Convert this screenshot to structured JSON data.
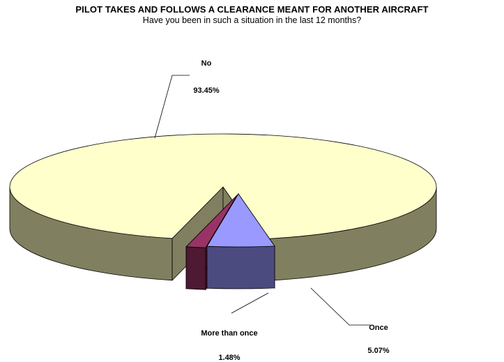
{
  "chart_data": {
    "type": "pie",
    "style": "3d-exploded",
    "title": "PILOT TAKES AND FOLLOWS A CLEARANCE MEANT FOR ANOTHER AIRCRAFT",
    "subtitle": "Have you been in such a situation in the last 12 months?",
    "slices": [
      {
        "label": "No",
        "value": 93.45,
        "value_label": "93.45%",
        "color": "#FFFFCC",
        "side_color": "#808060"
      },
      {
        "label": "Once",
        "value": 5.07,
        "value_label": "5.07%",
        "color": "#9999FF",
        "side_color": "#4B4B80"
      },
      {
        "label": "More than once",
        "value": 1.48,
        "value_label": "1.48%",
        "color": "#993366",
        "side_color": "#4D1933"
      }
    ],
    "legend": "none",
    "data_labels": "outside with leader lines"
  }
}
